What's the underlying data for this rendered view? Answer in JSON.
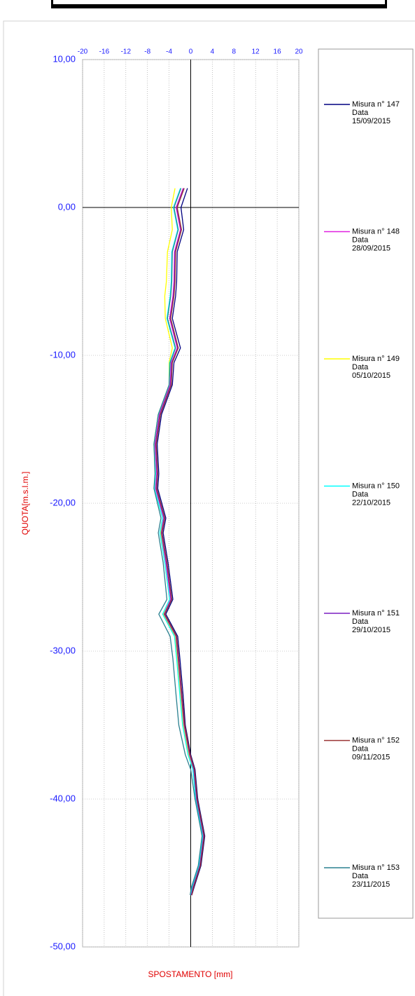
{
  "chart_data": {
    "type": "line",
    "xlabel": "SPOSTAMENTO [mm]",
    "ylabel": "QUOTA[m.s.l.m.]",
    "xlim": [
      -20,
      20
    ],
    "ylim": [
      -50,
      10
    ],
    "xticks": [
      -20,
      -16,
      -12,
      -8,
      -4,
      0,
      4,
      8,
      12,
      16,
      20
    ],
    "yticks": [
      {
        "value": 10,
        "label": "10,00"
      },
      {
        "value": 0,
        "label": "0,00"
      },
      {
        "value": -10,
        "label": "-10,00"
      },
      {
        "value": -20,
        "label": "-20,00"
      },
      {
        "value": -30,
        "label": "-30,00"
      },
      {
        "value": -40,
        "label": "-40,00"
      },
      {
        "value": -50,
        "label": "-50,00"
      }
    ],
    "grid": true,
    "legend_date_label": "Data",
    "y": [
      1.3,
      0,
      -1.5,
      -3,
      -5,
      -6,
      -7.5,
      -9.5,
      -10.5,
      -12,
      -14,
      -16,
      -18,
      -19,
      -21,
      -22,
      -24,
      -26.5,
      -27.5,
      -29,
      -30.5,
      -33,
      -35,
      -37,
      -38,
      -40,
      -42.5,
      -44.5,
      -46,
      -46.5
    ],
    "series": [
      {
        "name": "Misura n° 147",
        "date": "15/09/2015",
        "color": "#000080",
        "values": [
          -0.6,
          -1.8,
          -1.3,
          -2.5,
          -2.6,
          -2.8,
          -3.4,
          -1.9,
          -3.1,
          -3.4,
          -5.4,
          -6.2,
          -5.9,
          -6.1,
          -4.6,
          -5.1,
          -4.2,
          -3.3,
          -4.6,
          -2.4,
          -2.0,
          -1.4,
          -1.0,
          0.0,
          0.8,
          1.3,
          2.6,
          1.9,
          0.6,
          0.2
        ]
      },
      {
        "name": "Misura n° 148",
        "date": "28/09/2015",
        "color": "#e020e0",
        "values": [
          -1.4,
          -2.7,
          -1.9,
          -3.0,
          -3.1,
          -3.3,
          -3.9,
          -2.5,
          -3.6,
          -3.8,
          -5.8,
          -6.6,
          -6.3,
          -6.5,
          -5.0,
          -5.5,
          -4.6,
          -3.7,
          -5.0,
          -2.8,
          -2.4,
          -1.8,
          -1.3,
          -0.3,
          0.5,
          1.0,
          2.3,
          1.6,
          0.3,
          0.0
        ]
      },
      {
        "name": "Misura n° 149",
        "date": "05/10/2015",
        "color": "#ffff00",
        "values": [
          -2.9,
          -3.6,
          -3.4,
          -4.3,
          -4.5,
          -4.8,
          -4.7,
          -3.4,
          -4.0,
          -4.0,
          -6.0,
          -6.8,
          -6.5,
          -6.7,
          -5.2,
          -5.6,
          -4.8,
          -3.9,
          -5.1,
          -2.9,
          -2.5,
          -1.9,
          -1.4,
          -0.4,
          0.4,
          0.9,
          2.2,
          1.5,
          0.2,
          0.0
        ]
      },
      {
        "name": "Misura n° 150",
        "date": "22/10/2015",
        "color": "#00ffff",
        "values": [
          -1.9,
          -3.2,
          -2.4,
          -3.5,
          -3.6,
          -3.8,
          -4.4,
          -2.9,
          -3.9,
          -4.0,
          -6.0,
          -6.8,
          -6.5,
          -6.7,
          -5.2,
          -5.7,
          -4.8,
          -3.9,
          -5.2,
          -3.0,
          -2.6,
          -2.0,
          -1.5,
          -0.5,
          0.4,
          0.9,
          2.2,
          1.5,
          0.2,
          0.0
        ]
      },
      {
        "name": "Misura n° 151",
        "date": "29/10/2015",
        "color": "#7a1fc0",
        "values": [
          -1.3,
          -2.6,
          -1.8,
          -2.9,
          -3.0,
          -3.2,
          -3.8,
          -2.4,
          -3.5,
          -3.7,
          -5.7,
          -6.5,
          -6.2,
          -6.4,
          -4.9,
          -5.4,
          -4.5,
          -3.6,
          -4.9,
          -2.7,
          -2.3,
          -1.7,
          -1.2,
          -0.2,
          0.6,
          1.1,
          2.4,
          1.7,
          0.4,
          0.1
        ]
      },
      {
        "name": "Misura n° 152",
        "date": "09/11/2015",
        "color": "#993333",
        "values": [
          -1.2,
          -2.5,
          -1.7,
          -2.8,
          -2.9,
          -3.1,
          -3.7,
          -2.3,
          -3.4,
          -3.6,
          -5.6,
          -6.4,
          -6.1,
          -6.3,
          -4.8,
          -5.3,
          -4.4,
          -3.5,
          -4.8,
          -2.6,
          -2.2,
          -1.6,
          -1.1,
          -0.1,
          0.7,
          1.2,
          2.5,
          1.8,
          0.5,
          0.2
        ]
      },
      {
        "name": "Misura n° 153",
        "date": "23/11/2015",
        "color": "#2a8090",
        "values": [
          -1.8,
          -3.1,
          -2.3,
          -3.4,
          -3.5,
          -3.7,
          -4.3,
          -2.8,
          -3.8,
          -4.0,
          -6.0,
          -6.8,
          -6.6,
          -6.8,
          -5.5,
          -6.0,
          -5.1,
          -4.4,
          -5.9,
          -3.8,
          -3.3,
          -2.7,
          -2.2,
          -1.0,
          0.0,
          0.8,
          2.1,
          1.4,
          0.1,
          -0.1
        ]
      }
    ]
  }
}
